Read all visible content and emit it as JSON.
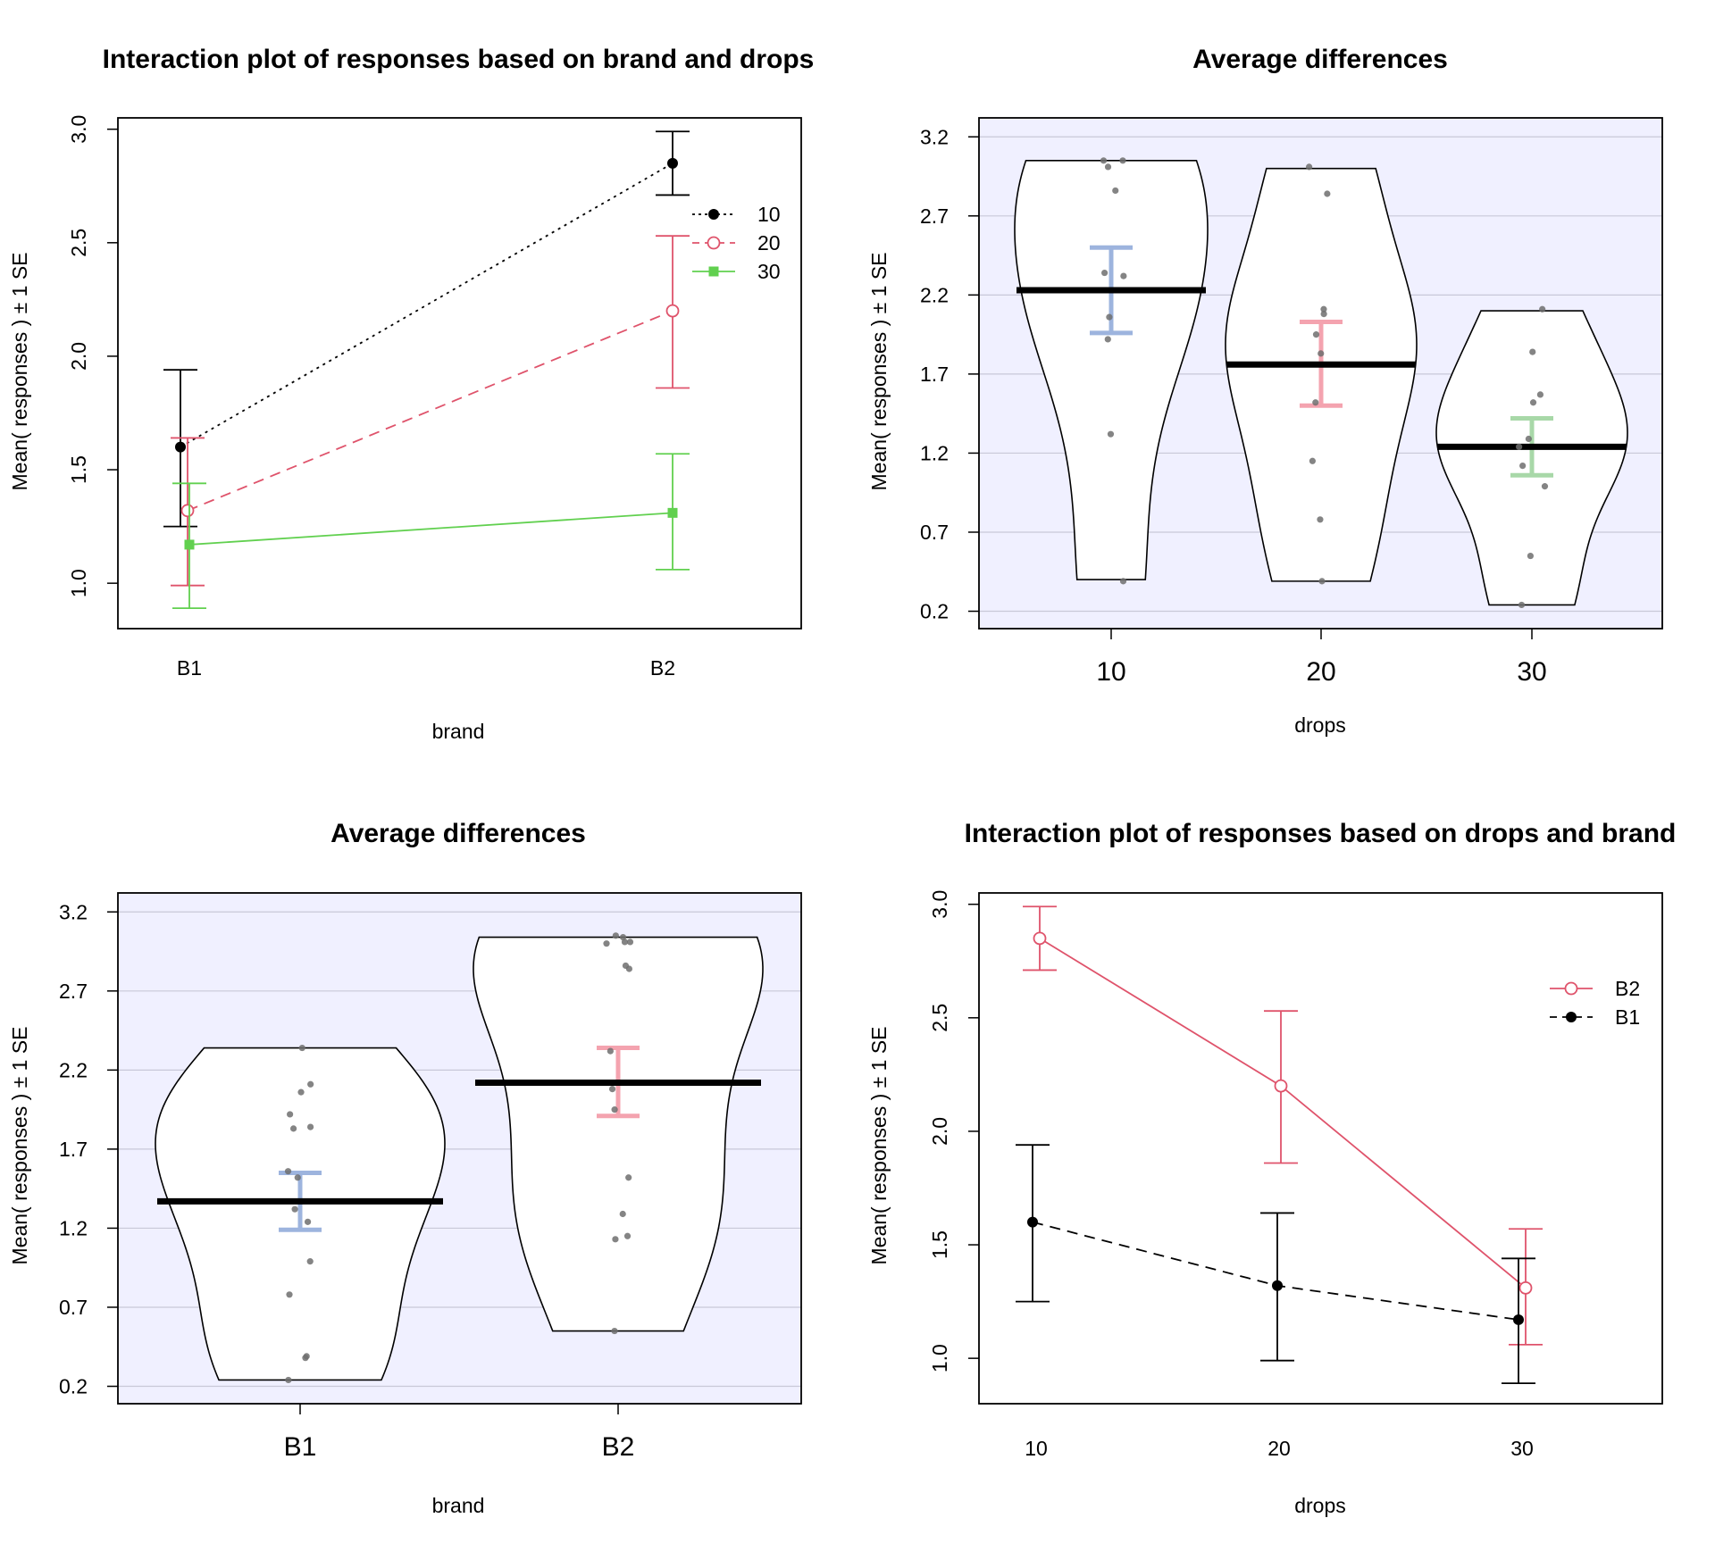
{
  "figure": {
    "colors": {
      "black": "#000000",
      "red": "#DF536B",
      "green": "#61D04F",
      "plot_bg": "#F0F0FF",
      "grid": "#C8C8D8",
      "blue_se": "#9DB4DE",
      "pink_se": "#F4A3AF",
      "green_se": "#A8D8A8",
      "point_gray": "#6E6E6E"
    }
  },
  "chart_data": [
    {
      "id": "p1",
      "type": "line",
      "title": "Interaction plot of responses based on brand and drops",
      "xlabel": "brand",
      "ylabel": "Mean( responses ) ±  1 SE",
      "categories": [
        "B1",
        "B2"
      ],
      "ylim": [
        0.8,
        3.05
      ],
      "yticks": [
        1.0,
        1.5,
        2.0,
        2.5,
        3.0
      ],
      "ytick_labels": [
        "1.0",
        "1.5",
        "2.0",
        "2.5",
        "3.0"
      ],
      "legend_position": "top-right",
      "series": [
        {
          "name": "10",
          "color": "#000000",
          "dash": "dotted",
          "marker": "filled-circle",
          "values": [
            1.6,
            2.85
          ],
          "se_low": [
            1.25,
            2.71
          ],
          "se_high": [
            1.94,
            2.99
          ]
        },
        {
          "name": "20",
          "color": "#DF536B",
          "dash": "dashed",
          "marker": "open-circle",
          "values": [
            1.32,
            2.2
          ],
          "se_low": [
            0.99,
            1.86
          ],
          "se_high": [
            1.64,
            2.53
          ]
        },
        {
          "name": "30",
          "color": "#61D04F",
          "dash": "solid",
          "marker": "filled-square",
          "values": [
            1.17,
            1.31
          ],
          "se_low": [
            0.89,
            1.06
          ],
          "se_high": [
            1.44,
            1.57
          ]
        }
      ]
    },
    {
      "id": "p2",
      "type": "violin",
      "title": "Average differences",
      "xlabel": "drops",
      "ylabel": "Mean( responses ) ±  1 SE",
      "categories": [
        "10",
        "20",
        "30"
      ],
      "ylim": [
        0.09,
        3.32
      ],
      "yticks": [
        0.2,
        0.7,
        1.2,
        1.7,
        2.2,
        2.7,
        3.2
      ],
      "ytick_labels": [
        "0.2",
        "0.7",
        "1.2",
        "1.7",
        "2.2",
        "2.7",
        "3.2"
      ],
      "grid": true,
      "groups": [
        {
          "category": "10",
          "mean": 2.23,
          "se_low": 1.96,
          "se_high": 2.5,
          "se_color": "#9DB4DE",
          "min": 0.4,
          "max": 3.05,
          "points": [
            3.05,
            3.05,
            3.01,
            2.86,
            2.34,
            2.32,
            2.06,
            1.92,
            1.32,
            0.39
          ]
        },
        {
          "category": "20",
          "mean": 1.76,
          "se_low": 1.5,
          "se_high": 2.03,
          "se_color": "#F4A3AF",
          "min": 0.39,
          "max": 3.0,
          "points": [
            3.01,
            2.84,
            2.11,
            2.08,
            1.95,
            1.83,
            1.52,
            1.15,
            0.78,
            0.39
          ]
        },
        {
          "category": "30",
          "mean": 1.24,
          "se_low": 1.06,
          "se_high": 1.42,
          "se_color": "#A8D8A8",
          "min": 0.24,
          "max": 2.1,
          "points": [
            2.11,
            1.84,
            1.57,
            1.52,
            1.29,
            1.24,
            1.12,
            0.99,
            0.55,
            0.24
          ]
        }
      ]
    },
    {
      "id": "p3",
      "type": "violin",
      "title": "Average differences",
      "xlabel": "brand",
      "ylabel": "Mean( responses ) ±  1 SE",
      "categories": [
        "B1",
        "B2"
      ],
      "ylim": [
        0.09,
        3.32
      ],
      "yticks": [
        0.2,
        0.7,
        1.2,
        1.7,
        2.2,
        2.7,
        3.2
      ],
      "ytick_labels": [
        "0.2",
        "0.7",
        "1.2",
        "1.7",
        "2.2",
        "2.7",
        "3.2"
      ],
      "grid": true,
      "groups": [
        {
          "category": "B1",
          "mean": 1.37,
          "se_low": 1.19,
          "se_high": 1.55,
          "se_color": "#9DB4DE",
          "min": 0.24,
          "max": 2.34,
          "points": [
            2.34,
            2.11,
            2.06,
            1.92,
            1.84,
            1.83,
            1.56,
            1.52,
            1.32,
            1.24,
            0.99,
            0.78,
            0.39,
            0.38,
            0.24
          ]
        },
        {
          "category": "B2",
          "mean": 2.12,
          "se_low": 1.91,
          "se_high": 2.34,
          "se_color": "#F4A3AF",
          "min": 0.55,
          "max": 3.04,
          "points": [
            3.05,
            3.04,
            3.01,
            3.0,
            3.01,
            2.86,
            2.84,
            2.32,
            2.08,
            1.95,
            1.52,
            1.29,
            1.15,
            1.13,
            0.55
          ]
        }
      ]
    },
    {
      "id": "p4",
      "type": "line",
      "title": "Interaction plot of responses based on drops and brand",
      "xlabel": "drops",
      "ylabel": "Mean( responses ) ±  1 SE",
      "categories": [
        "10",
        "20",
        "30"
      ],
      "ylim": [
        0.8,
        3.05
      ],
      "yticks": [
        1.0,
        1.5,
        2.0,
        2.5,
        3.0
      ],
      "ytick_labels": [
        "1.0",
        "1.5",
        "2.0",
        "2.5",
        "3.0"
      ],
      "legend_position": "top-right",
      "series": [
        {
          "name": "B2",
          "color": "#DF536B",
          "dash": "solid",
          "marker": "open-circle",
          "values": [
            2.85,
            2.2,
            1.31
          ],
          "se_low": [
            2.71,
            1.86,
            1.06
          ],
          "se_high": [
            2.99,
            2.53,
            1.57
          ]
        },
        {
          "name": "B1",
          "color": "#000000",
          "dash": "dashed",
          "marker": "filled-circle",
          "values": [
            1.6,
            1.32,
            1.17
          ],
          "se_low": [
            1.25,
            0.99,
            0.89
          ],
          "se_high": [
            1.94,
            1.64,
            1.44
          ]
        }
      ]
    }
  ]
}
